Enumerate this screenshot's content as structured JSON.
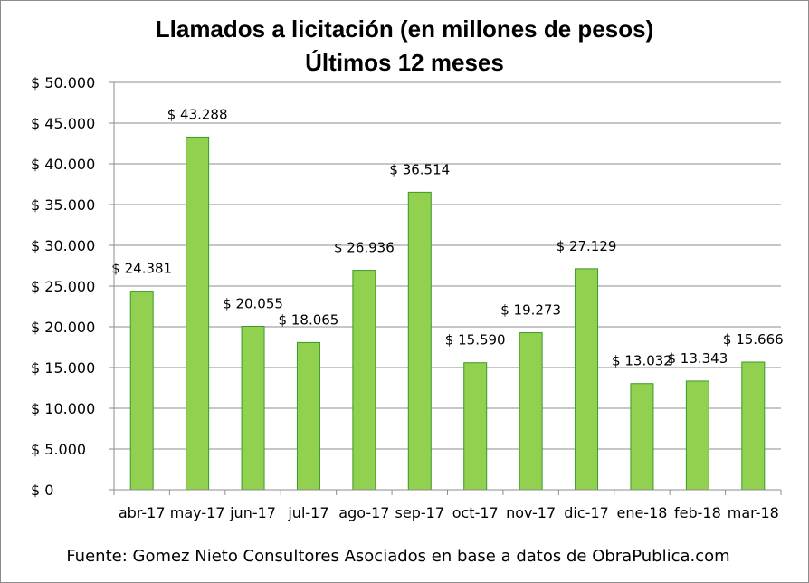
{
  "chart_data": {
    "type": "bar",
    "title": "Llamados a licitación (en millones de pesos)",
    "subtitle": "Últimos 12 meses",
    "categories": [
      "abr-17",
      "may-17",
      "jun-17",
      "jul-17",
      "ago-17",
      "sep-17",
      "oct-17",
      "nov-17",
      "dic-17",
      "ene-18",
      "feb-18",
      "mar-18"
    ],
    "values": [
      24381,
      43288,
      20055,
      18065,
      26936,
      36514,
      15590,
      19273,
      27129,
      13032,
      13343,
      15666
    ],
    "data_labels": [
      "$ 24.381",
      "$ 43.288",
      "$ 20.055",
      "$ 18.065",
      "$ 26.936",
      "$ 36.514",
      "$ 15.590",
      "$ 19.273",
      "$ 27.129",
      "$ 13.032",
      "$ 13.343",
      "$ 15.666"
    ],
    "y_tick_values": [
      0,
      5000,
      10000,
      15000,
      20000,
      25000,
      30000,
      35000,
      40000,
      45000,
      50000
    ],
    "y_tick_labels": [
      "$ 0",
      "$ 5.000",
      "$ 10.000",
      "$ 15.000",
      "$ 20.000",
      "$ 25.000",
      "$ 30.000",
      "$ 35.000",
      "$ 40.000",
      "$ 45.000",
      "$ 50.000"
    ],
    "ylim": [
      0,
      50000
    ],
    "grid": true,
    "legend": "none",
    "bar_color": "#92d050",
    "bar_edge_color": "#3a9a2a",
    "source": "Fuente: Gomez Nieto Consultores Asociados en base a datos de ObraPublica.com"
  }
}
